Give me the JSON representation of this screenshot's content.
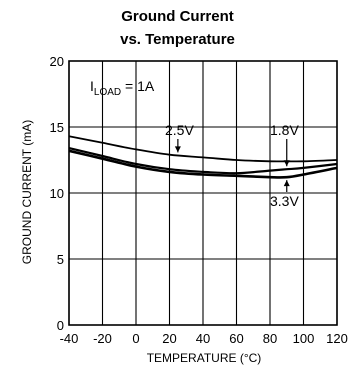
{
  "chart_data": {
    "type": "line",
    "title_line1": "Ground Current",
    "title_line2": "vs. Temperature",
    "xlabel": "TEMPERATURE (°C)",
    "ylabel": "GROUND CURRENT (mA)",
    "xlim": [
      -40,
      120
    ],
    "ylim": [
      0,
      20
    ],
    "xticks": [
      -40,
      -20,
      0,
      20,
      40,
      60,
      80,
      100,
      120
    ],
    "yticks": [
      0,
      5,
      10,
      15,
      20
    ],
    "grid": true,
    "condition_main": "I",
    "condition_sub": "LOAD",
    "condition_value": " = 1A",
    "series": [
      {
        "name": "2.5V",
        "x": [
          -40,
          -20,
          0,
          20,
          40,
          60,
          80,
          90,
          100,
          120
        ],
        "y": [
          14.3,
          13.8,
          13.3,
          12.9,
          12.7,
          12.5,
          12.4,
          12.4,
          12.4,
          12.5
        ]
      },
      {
        "name": "1.8V",
        "x": [
          -40,
          -20,
          0,
          20,
          40,
          60,
          80,
          90,
          100,
          120
        ],
        "y": [
          13.4,
          12.8,
          12.2,
          11.8,
          11.6,
          11.5,
          11.7,
          11.8,
          11.9,
          12.2
        ]
      },
      {
        "name": "3.3V",
        "x": [
          -40,
          -20,
          0,
          20,
          40,
          60,
          80,
          90,
          100,
          120
        ],
        "y": [
          13.2,
          12.6,
          12.0,
          11.6,
          11.4,
          11.3,
          11.2,
          11.2,
          11.4,
          11.9
        ]
      }
    ],
    "annotations": [
      {
        "text": "2.5V",
        "series": "2.5V"
      },
      {
        "text": "1.8V",
        "series": "1.8V"
      },
      {
        "text": "3.3V",
        "series": "3.3V"
      }
    ]
  }
}
